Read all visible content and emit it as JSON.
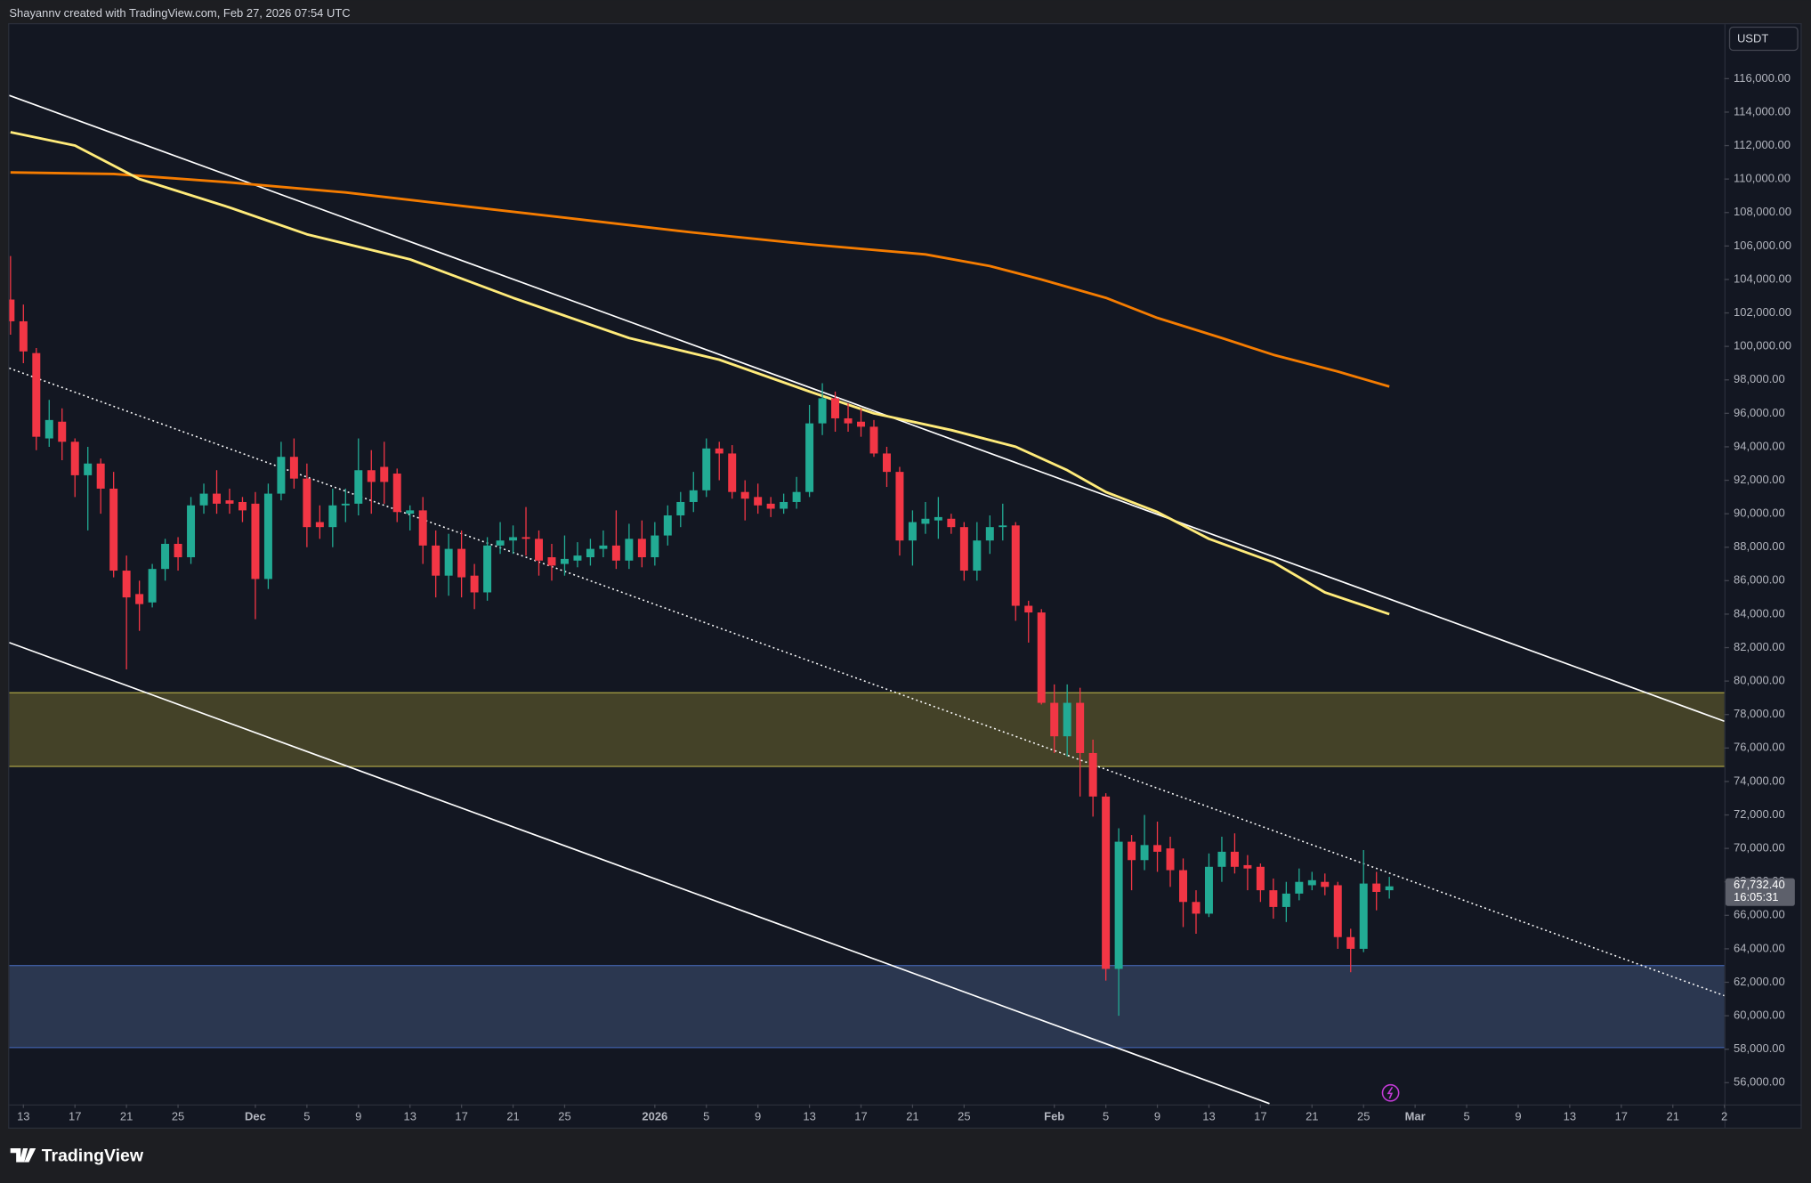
{
  "header": {
    "attribution": "Shayannv created with TradingView.com, Feb 27, 2026 07:54 UTC"
  },
  "footer": {
    "brand": "TradingView"
  },
  "chart_data": {
    "type": "candlestick",
    "currency": "USDT",
    "up_color": "#22ab94",
    "down_color": "#f23645",
    "x": [
      -1,
      0,
      1,
      2,
      3,
      4,
      5,
      6,
      7,
      8,
      9,
      10,
      11,
      12,
      13,
      14,
      15,
      16,
      17,
      18,
      19,
      20,
      21,
      22,
      23,
      24,
      25,
      26,
      27,
      28,
      29,
      30,
      31,
      32,
      33,
      34,
      35,
      36,
      37,
      38,
      39,
      40,
      41,
      42,
      43,
      44,
      45,
      46,
      47,
      48,
      49,
      50,
      51,
      52,
      53,
      54,
      55,
      56,
      57,
      58,
      59,
      60,
      61,
      62,
      63,
      64,
      65,
      66,
      67,
      68,
      69,
      70,
      71,
      72,
      73,
      74,
      75,
      76,
      77,
      78,
      79,
      80,
      81,
      82,
      83,
      84,
      85,
      86,
      87,
      88,
      89,
      90,
      91,
      92,
      93,
      94,
      95,
      96,
      97,
      98,
      99,
      100,
      101,
      102,
      103,
      104,
      105,
      106
    ],
    "open": [
      102800,
      101500,
      99600,
      94500,
      95500,
      94300,
      92300,
      93000,
      91500,
      86600,
      85200,
      84700,
      86700,
      88200,
      87400,
      90500,
      91200,
      90800,
      90700,
      90600,
      86100,
      91200,
      93400,
      92100,
      89500,
      89200,
      90500,
      90600,
      92600,
      92800,
      92400,
      90000,
      90200,
      88100,
      86300,
      87900,
      86300,
      85300,
      88100,
      88400,
      88600,
      88500,
      87400,
      87000,
      87200,
      87400,
      87900,
      88100,
      87200,
      88500,
      87400,
      88700,
      89900,
      90700,
      91400,
      93900,
      93600,
      91300,
      91000,
      90600,
      90300,
      90700,
      91300,
      95400,
      96900,
      95700,
      95500,
      95200,
      93600,
      92500,
      88400,
      89400,
      89600,
      89700,
      89200,
      86600,
      88400,
      89200,
      89300,
      84500,
      84100,
      78700,
      76700,
      78700,
      75700,
      73100,
      62800,
      70400,
      69300,
      70200,
      70000,
      68700,
      66800,
      66100,
      68900,
      69800,
      69000,
      68900,
      67500,
      66500,
      67300,
      67800,
      68000,
      67800,
      64700,
      64000,
      67900,
      67500
    ],
    "high": [
      105400,
      102500,
      99900,
      96800,
      96300,
      94500,
      94000,
      93300,
      92500,
      87500,
      86000,
      87000,
      88500,
      88600,
      91000,
      91800,
      92600,
      91500,
      91000,
      91300,
      91800,
      94300,
      94500,
      93000,
      90500,
      91500,
      91500,
      94500,
      93800,
      94300,
      92700,
      90500,
      91000,
      89000,
      88800,
      89000,
      87000,
      88600,
      89500,
      89300,
      90400,
      89000,
      88200,
      88700,
      88300,
      88500,
      89000,
      90200,
      89400,
      89600,
      89500,
      90500,
      91300,
      92500,
      94500,
      94300,
      94100,
      92000,
      91800,
      91000,
      91200,
      92200,
      96500,
      97800,
      97300,
      96600,
      96300,
      95600,
      94000,
      92800,
      90200,
      90700,
      91000,
      90000,
      89500,
      89500,
      89900,
      90600,
      89500,
      84800,
      84300,
      79800,
      79800,
      79600,
      76500,
      73300,
      71200,
      70800,
      72000,
      71600,
      70700,
      69400,
      67500,
      69700,
      70700,
      70900,
      69600,
      69100,
      68200,
      68000,
      68800,
      68600,
      68500,
      68000,
      65200,
      69900,
      68600,
      68300
    ],
    "low": [
      100700,
      99000,
      93800,
      94000,
      93200,
      91000,
      89000,
      90000,
      86200,
      80700,
      83000,
      84400,
      86000,
      86600,
      87000,
      90000,
      90000,
      90000,
      89500,
      83700,
      85500,
      90800,
      91500,
      88000,
      88500,
      88000,
      89500,
      89900,
      90000,
      90600,
      89500,
      89000,
      87000,
      85000,
      85100,
      85000,
      84300,
      84800,
      87600,
      87600,
      87500,
      86300,
      86000,
      86300,
      86800,
      86900,
      87400,
      86700,
      86700,
      86800,
      86900,
      88100,
      89200,
      90100,
      91000,
      92000,
      90900,
      89600,
      90000,
      89800,
      90000,
      90300,
      91000,
      94700,
      94900,
      94900,
      94600,
      93400,
      91600,
      87500,
      86900,
      88800,
      88500,
      88800,
      86000,
      86000,
      87600,
      88400,
      83600,
      82300,
      78600,
      75700,
      75500,
      73100,
      71900,
      62100,
      60000,
      67500,
      68700,
      68600,
      67700,
      65300,
      64900,
      65900,
      68000,
      68500,
      67500,
      66800,
      65800,
      65600,
      66900,
      67500,
      67200,
      64000,
      62600,
      63800,
      66300,
      67000
    ],
    "close": [
      101500,
      99700,
      94600,
      95600,
      94300,
      92300,
      93000,
      91500,
      86600,
      85000,
      84600,
      86700,
      88200,
      87400,
      90500,
      91200,
      90600,
      90600,
      90200,
      86100,
      91200,
      93400,
      92100,
      89200,
      89200,
      90500,
      90600,
      92600,
      91900,
      91900,
      90100,
      90200,
      88100,
      86300,
      87900,
      86200,
      85300,
      88100,
      88400,
      88600,
      88500,
      87200,
      86900,
      87300,
      87500,
      87900,
      88100,
      87200,
      88500,
      87400,
      88700,
      89900,
      90700,
      91400,
      93900,
      93600,
      91300,
      90900,
      90500,
      90300,
      90700,
      91300,
      95400,
      96900,
      95700,
      95400,
      95200,
      93600,
      92500,
      88400,
      89500,
      89700,
      89800,
      89200,
      86600,
      88400,
      89200,
      89300,
      84500,
      84100,
      78700,
      76700,
      78700,
      75700,
      73100,
      62800,
      70400,
      69300,
      70200,
      69800,
      68700,
      66800,
      66100,
      68900,
      69800,
      68900,
      68800,
      67500,
      66500,
      67300,
      68000,
      68100,
      67700,
      64700,
      64000,
      67900,
      67400,
      67732.4
    ],
    "last_price": {
      "value": 67732.4,
      "label": "67,732.40",
      "countdown": "16:05:31",
      "color": "#5d606b"
    },
    "overlays": [
      {
        "color": "#f57c00",
        "x": [
          -1,
          7,
          16,
          25,
          34,
          43,
          52,
          61,
          70,
          75,
          79,
          84,
          88,
          93,
          97,
          102,
          106
        ],
        "values": [
          110400,
          110300,
          109800,
          109200,
          108400,
          107600,
          106800,
          106100,
          105500,
          104800,
          104000,
          102900,
          101700,
          100500,
          99500,
          98500,
          97600
        ]
      },
      {
        "color": "#ffeb7a",
        "x": [
          -1,
          4,
          9,
          16,
          22,
          30,
          38,
          47,
          54,
          61,
          66,
          72,
          77,
          81,
          84,
          88,
          92,
          97,
          101,
          106
        ],
        "values": [
          112800,
          112000,
          110000,
          108300,
          106700,
          105200,
          102900,
          100500,
          99200,
          97300,
          96000,
          95000,
          94000,
          92600,
          91300,
          90100,
          88500,
          87100,
          85300,
          84000
        ]
      }
    ],
    "trendlines": [
      {
        "color": "#ffffff",
        "style": "solid",
        "x": [
          -1.1,
          132
        ],
        "values": [
          115000,
          77600
        ]
      },
      {
        "color": "#ffffff",
        "style": "solid",
        "x": [
          -1.1,
          96.7
        ],
        "values": [
          82300,
          54750
        ]
      },
      {
        "color": "#ffffff",
        "style": "dotted",
        "x": [
          -1.1,
          132
        ],
        "values": [
          98700,
          61200
        ]
      }
    ],
    "zones": [
      {
        "ylim": [
          74900,
          79300
        ],
        "color": "#4a4729",
        "border_color": "#aaa345"
      },
      {
        "ylim": [
          58100,
          63000
        ],
        "color": "#2f3b55",
        "border_color": "#3d5a9e"
      }
    ],
    "xlim": [
      -1.1,
      132
    ],
    "ylim": [
      54700,
      119250
    ],
    "grid": false,
    "xticks": [
      {
        "value": 0,
        "label": "13"
      },
      {
        "value": 4,
        "label": "17"
      },
      {
        "value": 8,
        "label": "21"
      },
      {
        "value": 12,
        "label": "25"
      },
      {
        "value": 18,
        "label": "Dec"
      },
      {
        "value": 22,
        "label": "5"
      },
      {
        "value": 26,
        "label": "9"
      },
      {
        "value": 30,
        "label": "13"
      },
      {
        "value": 34,
        "label": "17"
      },
      {
        "value": 38,
        "label": "21"
      },
      {
        "value": 42,
        "label": "25"
      },
      {
        "value": 49,
        "label": "2026"
      },
      {
        "value": 53,
        "label": "5"
      },
      {
        "value": 57,
        "label": "9"
      },
      {
        "value": 61,
        "label": "13"
      },
      {
        "value": 65,
        "label": "17"
      },
      {
        "value": 69,
        "label": "21"
      },
      {
        "value": 73,
        "label": "25"
      },
      {
        "value": 80,
        "label": "Feb"
      },
      {
        "value": 84,
        "label": "5"
      },
      {
        "value": 88,
        "label": "9"
      },
      {
        "value": 92,
        "label": "13"
      },
      {
        "value": 96,
        "label": "17"
      },
      {
        "value": 100,
        "label": "21"
      },
      {
        "value": 104,
        "label": "25"
      },
      {
        "value": 108,
        "label": "Mar"
      },
      {
        "value": 112,
        "label": "5"
      },
      {
        "value": 116,
        "label": "9"
      },
      {
        "value": 120,
        "label": "13"
      },
      {
        "value": 124,
        "label": "17"
      },
      {
        "value": 128,
        "label": "21"
      },
      {
        "value": 132,
        "label": "2"
      }
    ],
    "yticks": [
      {
        "value": 56000,
        "label": "56,000.00"
      },
      {
        "value": 58000,
        "label": "58,000.00"
      },
      {
        "value": 60000,
        "label": "60,000.00"
      },
      {
        "value": 62000,
        "label": "62,000.00"
      },
      {
        "value": 64000,
        "label": "64,000.00"
      },
      {
        "value": 66000,
        "label": "66,000.00"
      },
      {
        "value": 68000,
        "label": "68,000.00"
      },
      {
        "value": 70000,
        "label": "70,000.00"
      },
      {
        "value": 72000,
        "label": "72,000.00"
      },
      {
        "value": 74000,
        "label": "74,000.00"
      },
      {
        "value": 76000,
        "label": "76,000.00"
      },
      {
        "value": 78000,
        "label": "78,000.00"
      },
      {
        "value": 80000,
        "label": "80,000.00"
      },
      {
        "value": 82000,
        "label": "82,000.00"
      },
      {
        "value": 84000,
        "label": "84,000.00"
      },
      {
        "value": 86000,
        "label": "86,000.00"
      },
      {
        "value": 88000,
        "label": "88,000.00"
      },
      {
        "value": 90000,
        "label": "90,000.00"
      },
      {
        "value": 92000,
        "label": "92,000.00"
      },
      {
        "value": 94000,
        "label": "94,000.00"
      },
      {
        "value": 96000,
        "label": "96,000.00"
      },
      {
        "value": 98000,
        "label": "98,000.00"
      },
      {
        "value": 100000,
        "label": "100,000.00"
      },
      {
        "value": 102000,
        "label": "102,000.00"
      },
      {
        "value": 104000,
        "label": "104,000.00"
      },
      {
        "value": 106000,
        "label": "106,000.00"
      },
      {
        "value": 108000,
        "label": "108,000.00"
      },
      {
        "value": 110000,
        "label": "110,000.00"
      },
      {
        "value": 112000,
        "label": "112,000.00"
      },
      {
        "value": 114000,
        "label": "114,000.00"
      },
      {
        "value": 116000,
        "label": "116,000.00"
      }
    ]
  }
}
